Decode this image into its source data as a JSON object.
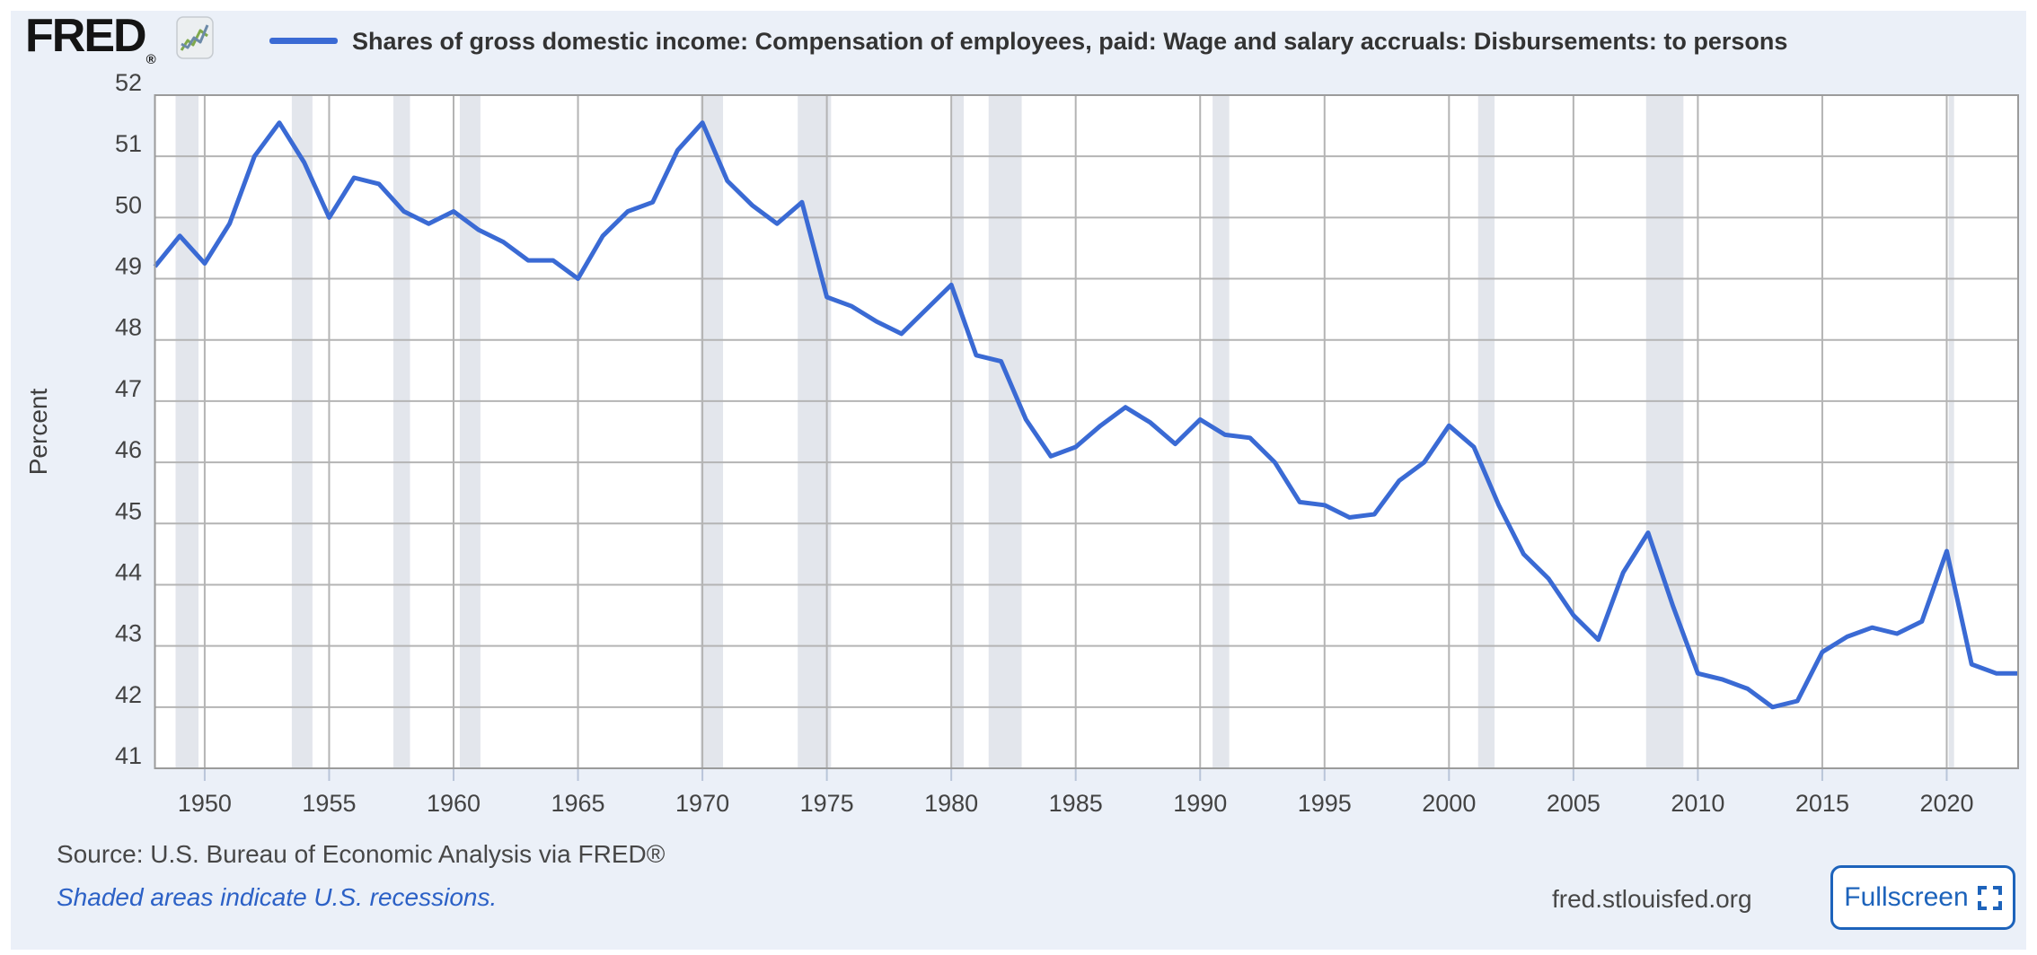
{
  "header": {
    "logo_text": "FRED",
    "logo_registered": "®",
    "title": "Shares of gross domestic income: Compensation of employees, paid: Wage and salary accruals: Disbursements: to persons"
  },
  "footer": {
    "source": "Source: U.S. Bureau of Economic Analysis via FRED®",
    "recession_note": "Shaded areas indicate U.S. recessions.",
    "site": "fred.stlouisfed.org",
    "fullscreen_label": "Fullscreen"
  },
  "colors": {
    "panel_bg": "#ebf0f8",
    "plot_bg": "#ffffff",
    "line": "#3a6ad4",
    "recession_band": "#e3e6ec",
    "gridline": "#b4b4b4",
    "plot_border": "#9b9b9b",
    "tick_mark": "#b9c5d9",
    "tick_label": "#434343",
    "axis_title": "#3f3f3f",
    "link_blue": "#2c61c6",
    "button_blue": "#1d63bb",
    "footer_text": "#474747"
  },
  "chart_data": {
    "type": "line",
    "title": "Shares of gross domestic income: Compensation of employees, paid: Wage and salary accruals: Disbursements: to persons",
    "xlabel": "",
    "ylabel": "Percent",
    "ylim": [
      41,
      52
    ],
    "xlim": [
      1948,
      2022.87
    ],
    "grid": true,
    "legend_position": "top",
    "y_ticks": [
      41,
      42,
      43,
      44,
      45,
      46,
      47,
      48,
      49,
      50,
      51,
      52
    ],
    "x_ticks": [
      1950,
      1955,
      1960,
      1965,
      1970,
      1975,
      1980,
      1985,
      1990,
      1995,
      2000,
      2005,
      2010,
      2015,
      2020
    ],
    "series": [
      {
        "name": "Shares of gross domestic income: Compensation of employees, paid: Wage and salary accruals: Disbursements: to persons",
        "color": "#3a6ad4",
        "x": [
          1948,
          1949,
          1950,
          1951,
          1952,
          1953,
          1954,
          1955,
          1956,
          1957,
          1958,
          1959,
          1960,
          1961,
          1962,
          1963,
          1964,
          1965,
          1966,
          1967,
          1968,
          1969,
          1970,
          1971,
          1972,
          1973,
          1974,
          1975,
          1976,
          1977,
          1978,
          1979,
          1980,
          1981,
          1982,
          1983,
          1984,
          1985,
          1986,
          1987,
          1988,
          1989,
          1990,
          1991,
          1992,
          1993,
          1994,
          1995,
          1996,
          1997,
          1998,
          1999,
          2000,
          2001,
          2002,
          2003,
          2004,
          2005,
          2006,
          2007,
          2008,
          2009,
          2010,
          2011,
          2012,
          2013,
          2014,
          2015,
          2016,
          2017,
          2018,
          2019,
          2020,
          2021,
          2022
        ],
        "values": [
          49.2,
          49.7,
          49.25,
          49.9,
          51.0,
          51.55,
          50.9,
          50.0,
          50.65,
          50.55,
          50.1,
          49.9,
          50.1,
          49.8,
          49.6,
          49.3,
          49.3,
          49.0,
          49.7,
          50.1,
          50.25,
          51.1,
          51.55,
          50.6,
          50.2,
          49.9,
          50.25,
          48.7,
          48.55,
          48.3,
          48.1,
          48.5,
          48.9,
          47.75,
          47.65,
          46.7,
          46.1,
          46.25,
          46.6,
          46.9,
          46.65,
          46.3,
          46.7,
          46.45,
          46.4,
          46.0,
          45.35,
          45.3,
          45.1,
          45.15,
          45.7,
          46.0,
          46.6,
          46.25,
          45.3,
          44.5,
          44.1,
          43.5,
          43.1,
          44.2,
          44.85,
          43.65,
          42.55,
          42.45,
          42.3,
          42.0,
          42.1,
          42.9,
          43.15,
          43.3,
          43.2,
          43.4,
          44.55,
          42.7,
          42.55
        ]
      }
    ],
    "recessions": [
      [
        1948.83,
        1949.75
      ],
      [
        1953.5,
        1954.33
      ],
      [
        1957.58,
        1958.25
      ],
      [
        1960.25,
        1961.08
      ],
      [
        1969.92,
        1970.83
      ],
      [
        1973.83,
        1975.17
      ],
      [
        1980.0,
        1980.5
      ],
      [
        1981.5,
        1982.83
      ],
      [
        1990.5,
        1991.17
      ],
      [
        2001.17,
        2001.83
      ],
      [
        2007.92,
        2009.42
      ],
      [
        2020.08,
        2020.25
      ]
    ]
  }
}
